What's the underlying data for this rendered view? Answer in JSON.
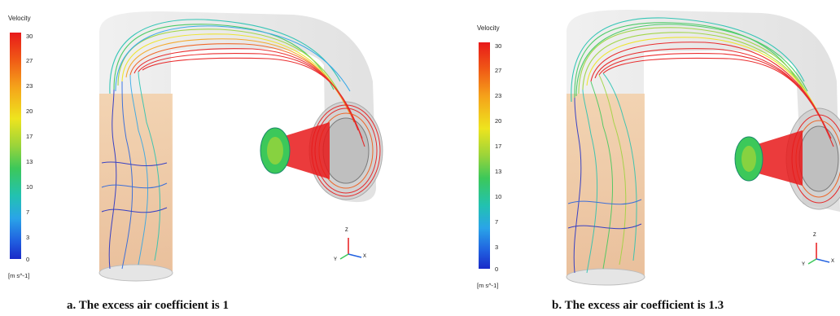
{
  "panel_a": {
    "legend": {
      "title": "Velocity",
      "ticks": [
        "30",
        "27",
        "23",
        "20",
        "17",
        "13",
        "10",
        "7",
        "3",
        "0"
      ],
      "unit": "[m s^-1]"
    },
    "axis_triad": {
      "z": "Z",
      "x": "X",
      "y": "Y"
    },
    "caption": "a. The excess air coefficient is 1"
  },
  "panel_b": {
    "legend": {
      "title": "Velocity",
      "ticks": [
        "30",
        "27",
        "23",
        "20",
        "17",
        "13",
        "10",
        "7",
        "3",
        "0"
      ],
      "unit": "[m s^-1]"
    },
    "axis_triad": {
      "z": "Z",
      "x": "X",
      "y": "Y"
    },
    "caption": "b. The excess air coefficient is 1.3"
  },
  "colors": {
    "velocity_max": "#e8191a",
    "velocity_mid": "#eee41e",
    "velocity_low": "#22c2b0",
    "velocity_min": "#1a2ac8",
    "shell": "#d8d8d8",
    "column_tint": "#f2c79c"
  }
}
